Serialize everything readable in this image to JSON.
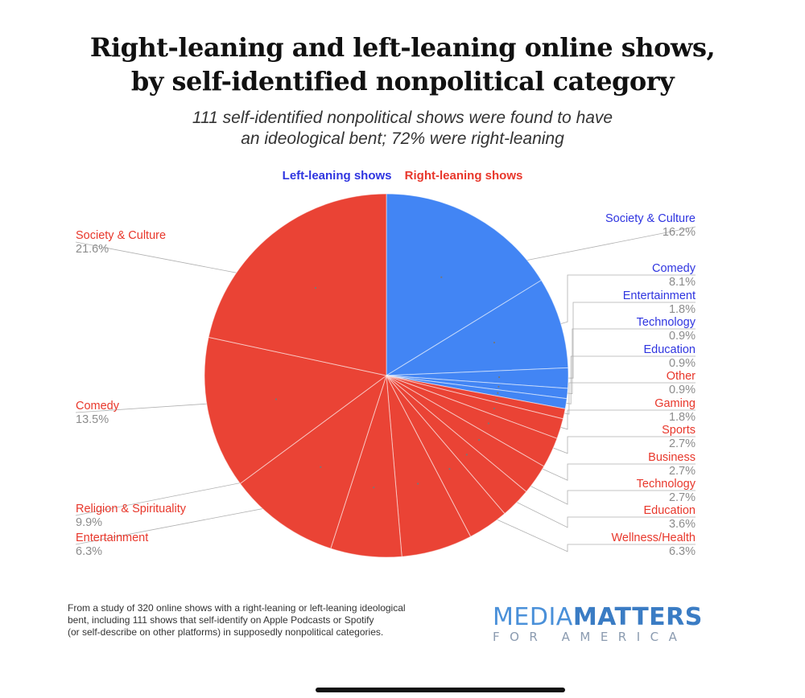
{
  "chart_data": {
    "type": "pie",
    "title_lines": [
      "Right-leaning and left-leaning online shows,",
      "by self-identified nonpolitical category"
    ],
    "subtitle_lines": [
      "111 self-identified nonpolitical shows were found to have",
      "an ideological bent; 72% were right-leaning"
    ],
    "legend": [
      {
        "label": "Left-leaning shows",
        "color": "#2f35e0"
      },
      {
        "label": "Right-leaning shows",
        "color": "#e8372b"
      }
    ],
    "colors": {
      "left_slice": "#4285f4",
      "right_slice": "#ea4335",
      "left_label": "#2f35e0",
      "right_label": "#e8372b",
      "value_text": "#8c8c8c"
    },
    "slices": [
      {
        "name": "Society & Culture",
        "value": 16.2,
        "value_label": "16.2%",
        "group": "left"
      },
      {
        "name": "Comedy",
        "value": 8.1,
        "value_label": "8.1%",
        "group": "left"
      },
      {
        "name": "Entertainment",
        "value": 1.8,
        "value_label": "1.8%",
        "group": "left"
      },
      {
        "name": "Technology",
        "value": 0.9,
        "value_label": "0.9%",
        "group": "left"
      },
      {
        "name": "Education",
        "value": 0.9,
        "value_label": "0.9%",
        "group": "left"
      },
      {
        "name": "Other",
        "value": 0.9,
        "value_label": "0.9%",
        "group": "right"
      },
      {
        "name": "Gaming",
        "value": 1.8,
        "value_label": "1.8%",
        "group": "right"
      },
      {
        "name": "Sports",
        "value": 2.7,
        "value_label": "2.7%",
        "group": "right"
      },
      {
        "name": "Business",
        "value": 2.7,
        "value_label": "2.7%",
        "group": "right"
      },
      {
        "name": "Technology",
        "value": 2.7,
        "value_label": "2.7%",
        "group": "right"
      },
      {
        "name": "Education",
        "value": 3.6,
        "value_label": "3.6%",
        "group": "right"
      },
      {
        "name": "Wellness/Health",
        "value": 6.3,
        "value_label": "6.3%",
        "group": "right"
      },
      {
        "name": "Entertainment",
        "value": 6.3,
        "value_label": "6.3%",
        "group": "right"
      },
      {
        "name": "Religion & Spirituality",
        "value": 9.9,
        "value_label": "9.9%",
        "group": "right"
      },
      {
        "name": "Comedy",
        "value": 13.5,
        "value_label": "13.5%",
        "group": "right"
      },
      {
        "name": "Society & Culture",
        "value": 21.6,
        "value_label": "21.6%",
        "group": "right"
      }
    ]
  },
  "footnote_lines": [
    "From a study of 320 online shows with a right-leaning or left-leaning ideological",
    "bent, including 111 shows that self-identify on Apple Podcasts or Spotify",
    "(or self-describe on other platforms) in supposedly nonpolitical categories."
  ],
  "logo": {
    "media": "MEDIA",
    "matters": "MATTERS",
    "sub": "FOR AMERICA"
  }
}
